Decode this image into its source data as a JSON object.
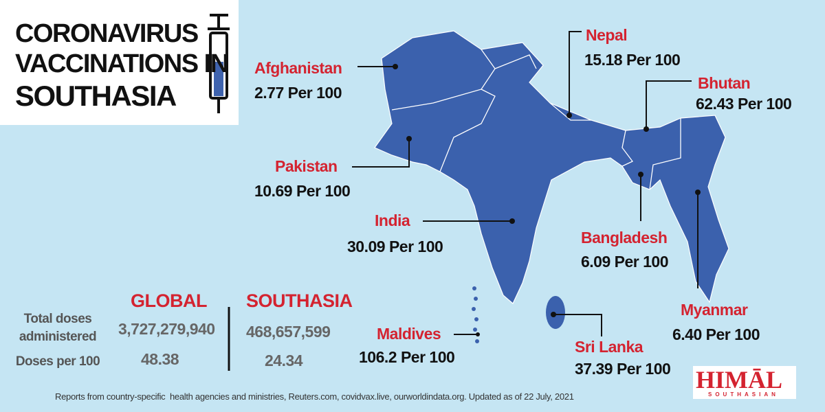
{
  "title": {
    "lines": [
      "CORONAVIRUS",
      "VACCINATIONS IN",
      "SOUTHASIA"
    ]
  },
  "countries": [
    {
      "name": "Afghanistan",
      "value": "2.77 Per 100"
    },
    {
      "name": "Nepal",
      "value": "15.18 Per 100"
    },
    {
      "name": "Bhutan",
      "value": "62.43 Per 100"
    },
    {
      "name": "Pakistan",
      "value": "10.69 Per 100"
    },
    {
      "name": "India",
      "value": "30.09 Per 100"
    },
    {
      "name": "Bangladesh",
      "value": "6.09 Per 100"
    },
    {
      "name": "Myanmar",
      "value": "6.40 Per 100"
    },
    {
      "name": "Maldives",
      "value": "106.2 Per 100"
    },
    {
      "name": "Sri Lanka",
      "value": "37.39 Per 100"
    }
  ],
  "table": {
    "headers": [
      "GLOBAL",
      "SOUTHASIA"
    ],
    "rows": [
      [
        "Total doses administered",
        "3,727,279,940",
        "468,657,599"
      ],
      [
        "Doses per 100",
        "48.38",
        "24.34"
      ]
    ]
  },
  "footer": "Reports from country-specific  health agencies and ministries, Reuters.com, covidvax.live, ourworldindata.org. Updated as of 22 July, 2021",
  "logo": {
    "name": "HIMĀL",
    "sub": "SOUTHASIAN"
  }
}
